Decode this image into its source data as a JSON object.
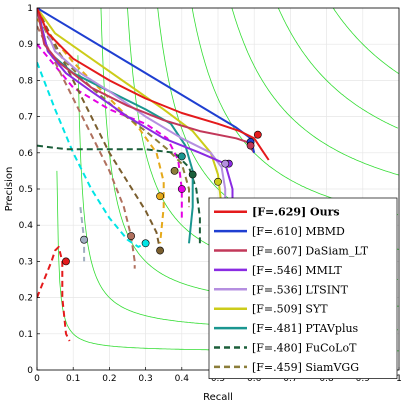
{
  "chart_data": {
    "type": "line",
    "title": "",
    "xlabel": "Recall",
    "ylabel": "Precision",
    "xlim": [
      0,
      1
    ],
    "ylim": [
      0,
      1
    ],
    "grid": true,
    "legend_position": "bottom-right",
    "x_ticks": [
      "0",
      "0.1",
      "0.2",
      "0.3",
      "0.4",
      "0.5",
      "0.6",
      "0.7",
      "0.8",
      "0.9",
      "1"
    ],
    "y_ticks": [
      "0",
      "0.1",
      "0.2",
      "0.3",
      "0.4",
      "0.5",
      "0.6",
      "0.7",
      "0.8",
      "0.9",
      "1"
    ],
    "f_contours": [
      0.1,
      0.2,
      0.3,
      0.4,
      0.5,
      0.6,
      0.7,
      0.8,
      0.9
    ],
    "series": [
      {
        "name": "Ours",
        "fscore": ".629",
        "bold": true,
        "color": "#e41a1c",
        "dashed": false,
        "points": [
          [
            0,
            1
          ],
          [
            0.03,
            0.93
          ],
          [
            0.1,
            0.86
          ],
          [
            0.2,
            0.8
          ],
          [
            0.3,
            0.75
          ],
          [
            0.4,
            0.71
          ],
          [
            0.5,
            0.68
          ],
          [
            0.56,
            0.66
          ],
          [
            0.6,
            0.64
          ],
          [
            0.62,
            0.61
          ],
          [
            0.64,
            0.58
          ]
        ],
        "marker": [
          0.61,
          0.65
        ]
      },
      {
        "name": "MBMD",
        "fscore": ".610",
        "bold": false,
        "color": "#1f3fd1",
        "dashed": false,
        "points": [
          [
            0,
            1
          ],
          [
            0.2,
            0.88
          ],
          [
            0.4,
            0.76
          ],
          [
            0.55,
            0.67
          ],
          [
            0.59,
            0.64
          ],
          [
            0.6,
            0.6
          ]
        ],
        "marker": [
          0.59,
          0.63
        ]
      },
      {
        "name": "DaSiam_LT",
        "fscore": ".607",
        "bold": false,
        "color": "#c2385a",
        "dashed": false,
        "points": [
          [
            0,
            1
          ],
          [
            0.02,
            0.9
          ],
          [
            0.06,
            0.85
          ],
          [
            0.15,
            0.78
          ],
          [
            0.25,
            0.73
          ],
          [
            0.35,
            0.69
          ],
          [
            0.45,
            0.66
          ],
          [
            0.55,
            0.64
          ],
          [
            0.58,
            0.63
          ],
          [
            0.6,
            0.6
          ]
        ],
        "marker": [
          0.59,
          0.62
        ]
      },
      {
        "name": "MMLT",
        "fscore": ".546",
        "bold": false,
        "color": "#8a2be2",
        "dashed": false,
        "points": [
          [
            0,
            1
          ],
          [
            0.03,
            0.88
          ],
          [
            0.08,
            0.82
          ],
          [
            0.15,
            0.77
          ],
          [
            0.25,
            0.7
          ],
          [
            0.35,
            0.64
          ],
          [
            0.45,
            0.6
          ],
          [
            0.52,
            0.57
          ],
          [
            0.54,
            0.5
          ],
          [
            0.54,
            0.4
          ]
        ],
        "marker": [
          0.53,
          0.57
        ]
      },
      {
        "name": "LTSINT",
        "fscore": ".536",
        "bold": false,
        "color": "#b58fe0",
        "dashed": false,
        "points": [
          [
            0,
            1
          ],
          [
            0.05,
            0.88
          ],
          [
            0.12,
            0.82
          ],
          [
            0.2,
            0.77
          ],
          [
            0.3,
            0.7
          ],
          [
            0.4,
            0.64
          ],
          [
            0.48,
            0.6
          ],
          [
            0.51,
            0.56
          ],
          [
            0.52,
            0.5
          ],
          [
            0.52,
            0.4
          ]
        ],
        "marker": [
          0.52,
          0.57
        ]
      },
      {
        "name": "SYT",
        "fscore": ".509",
        "bold": false,
        "color": "#cccc1a",
        "dashed": false,
        "points": [
          [
            0,
            1
          ],
          [
            0.05,
            0.93
          ],
          [
            0.15,
            0.86
          ],
          [
            0.25,
            0.79
          ],
          [
            0.35,
            0.72
          ],
          [
            0.43,
            0.66
          ],
          [
            0.48,
            0.6
          ],
          [
            0.5,
            0.54
          ],
          [
            0.51,
            0.45
          ]
        ],
        "marker": [
          0.5,
          0.52
        ]
      },
      {
        "name": "PTAVplus",
        "fscore": ".481",
        "bold": false,
        "color": "#1a9690",
        "dashed": false,
        "points": [
          [
            0,
            1
          ],
          [
            0.03,
            0.88
          ],
          [
            0.1,
            0.82
          ],
          [
            0.2,
            0.77
          ],
          [
            0.3,
            0.72
          ],
          [
            0.37,
            0.68
          ],
          [
            0.41,
            0.62
          ],
          [
            0.43,
            0.55
          ],
          [
            0.43,
            0.45
          ],
          [
            0.42,
            0.35
          ]
        ],
        "marker": [
          0.4,
          0.59
        ]
      },
      {
        "name": "FuCoLoT",
        "fscore": ".480",
        "bold": false,
        "color": "#1b5e3a",
        "dashed": true,
        "points": [
          [
            0,
            0.62
          ],
          [
            0.08,
            0.61
          ],
          [
            0.2,
            0.61
          ],
          [
            0.3,
            0.61
          ],
          [
            0.38,
            0.6
          ],
          [
            0.42,
            0.56
          ],
          [
            0.44,
            0.5
          ],
          [
            0.45,
            0.42
          ],
          [
            0.45,
            0.35
          ]
        ],
        "marker": [
          0.43,
          0.54
        ]
      },
      {
        "name": "SiamVGG",
        "fscore": ".459",
        "bold": false,
        "color": "#8b7d3a",
        "dashed": true,
        "points": [
          [
            0,
            1
          ],
          [
            0.03,
            0.92
          ],
          [
            0.08,
            0.85
          ],
          [
            0.15,
            0.78
          ],
          [
            0.22,
            0.72
          ],
          [
            0.3,
            0.66
          ],
          [
            0.36,
            0.61
          ],
          [
            0.4,
            0.57
          ],
          [
            0.42,
            0.5
          ],
          [
            0.42,
            0.45
          ]
        ],
        "marker": [
          0.38,
          0.55
        ]
      }
    ],
    "extra_curves": [
      {
        "color": "#e41a1c",
        "points": [
          [
            0,
            0.2
          ],
          [
            0.02,
            0.25
          ],
          [
            0.04,
            0.3
          ],
          [
            0.05,
            0.33
          ],
          [
            0.06,
            0.34
          ],
          [
            0.07,
            0.3
          ],
          [
            0.07,
            0.2
          ],
          [
            0.08,
            0.1
          ],
          [
            0.09,
            0.08
          ]
        ],
        "marker": [
          0.08,
          0.3
        ]
      },
      {
        "color": "#00e5e5",
        "points": [
          [
            0,
            0.85
          ],
          [
            0.05,
            0.72
          ],
          [
            0.1,
            0.6
          ],
          [
            0.15,
            0.5
          ],
          [
            0.2,
            0.42
          ],
          [
            0.25,
            0.36
          ],
          [
            0.28,
            0.34
          ],
          [
            0.3,
            0.35
          ]
        ],
        "marker": [
          0.3,
          0.35
        ]
      },
      {
        "color": "#e500e5",
        "points": [
          [
            0,
            0.9
          ],
          [
            0.1,
            0.78
          ],
          [
            0.2,
            0.72
          ],
          [
            0.3,
            0.68
          ],
          [
            0.36,
            0.64
          ],
          [
            0.39,
            0.58
          ],
          [
            0.4,
            0.5
          ],
          [
            0.4,
            0.42
          ]
        ],
        "marker": [
          0.4,
          0.5
        ]
      },
      {
        "color": "#e5a91a",
        "points": [
          [
            0,
            0.97
          ],
          [
            0.1,
            0.85
          ],
          [
            0.2,
            0.75
          ],
          [
            0.28,
            0.67
          ],
          [
            0.33,
            0.6
          ],
          [
            0.35,
            0.52
          ],
          [
            0.35,
            0.45
          ],
          [
            0.34,
            0.35
          ]
        ],
        "marker": [
          0.34,
          0.48
        ]
      },
      {
        "color": "#7a5e2e",
        "points": [
          [
            0,
            1
          ],
          [
            0.05,
            0.9
          ],
          [
            0.1,
            0.8
          ],
          [
            0.15,
            0.7
          ],
          [
            0.2,
            0.6
          ],
          [
            0.25,
            0.52
          ],
          [
            0.3,
            0.44
          ],
          [
            0.33,
            0.38
          ],
          [
            0.34,
            0.33
          ]
        ],
        "marker": [
          0.34,
          0.33
        ]
      },
      {
        "color": "#b0705e",
        "points": [
          [
            0,
            0.95
          ],
          [
            0.05,
            0.85
          ],
          [
            0.1,
            0.75
          ],
          [
            0.15,
            0.65
          ],
          [
            0.2,
            0.55
          ],
          [
            0.24,
            0.45
          ],
          [
            0.26,
            0.37
          ],
          [
            0.27,
            0.3
          ],
          [
            0.27,
            0.28
          ]
        ],
        "marker": [
          0.26,
          0.37
        ]
      },
      {
        "color": "#a0aec0",
        "points": [
          [
            0.12,
            0.45
          ],
          [
            0.13,
            0.36
          ],
          [
            0.13,
            0.3
          ]
        ],
        "marker": [
          0.13,
          0.36
        ]
      }
    ]
  }
}
